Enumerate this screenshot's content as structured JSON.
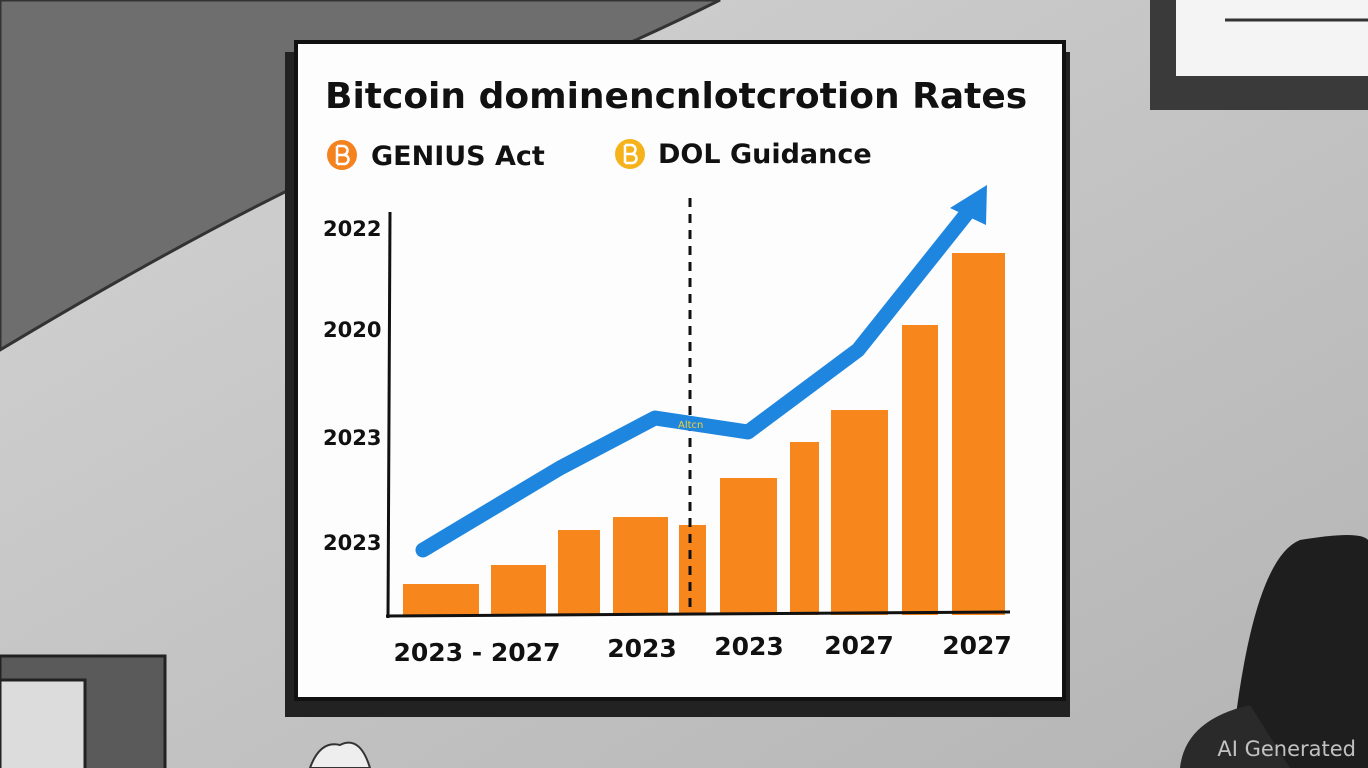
{
  "header": {
    "title": "Bitcoin dominencnlotcrotion Rates"
  },
  "legend": [
    {
      "label": "GENIUS Act"
    },
    {
      "label": "DOL Guidance"
    }
  ],
  "y_labels": [
    "2022",
    "2020",
    "2023",
    "2023"
  ],
  "x_labels": [
    "2023 - 2027",
    "2023",
    "2023",
    "2027",
    "2027"
  ],
  "line_label": "Altcn",
  "watermark": "AI Generated"
}
